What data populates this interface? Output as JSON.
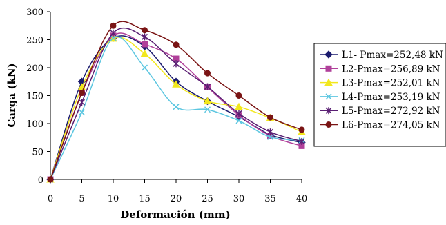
{
  "chart_data": {
    "type": "line",
    "xlabel": "Deformación (mm)",
    "ylabel": "Carga (kN)",
    "xlim": [
      0,
      40
    ],
    "ylim": [
      0,
      300
    ],
    "xticks": [
      "0",
      "5",
      "10",
      "15",
      "20",
      "25",
      "30",
      "35",
      "40"
    ],
    "yticks": [
      "0",
      "50",
      "100",
      "150",
      "200",
      "250",
      "300"
    ],
    "grid": false,
    "legend_position": "right",
    "series": [
      {
        "name": "L1- Pmax=252,48 kN",
        "color": "#1b1b6e",
        "marker": "diamond",
        "x": [
          0,
          5,
          10,
          15,
          20,
          25,
          30,
          35,
          40
        ],
        "y": [
          0,
          175,
          253,
          238,
          175,
          140,
          112,
          80,
          66
        ]
      },
      {
        "name": "L2-Pmax=256,89 kN",
        "color": "#b0409a",
        "marker": "square",
        "x": [
          0,
          5,
          10,
          15,
          20,
          25,
          30,
          35,
          40
        ],
        "y": [
          0,
          155,
          257,
          242,
          216,
          165,
          115,
          78,
          60
        ]
      },
      {
        "name": "L3-Pmax=252,01 kN",
        "color": "#f2e71c",
        "marker": "triangle",
        "x": [
          0,
          5,
          10,
          15,
          20,
          25,
          30,
          35,
          40
        ],
        "y": [
          0,
          165,
          252,
          225,
          170,
          140,
          130,
          110,
          85
        ]
      },
      {
        "name": "L4-Pmax=253,19 kN",
        "color": "#5bc6e0",
        "marker": "x",
        "x": [
          0,
          5,
          10,
          15,
          20,
          25,
          30,
          35,
          40
        ],
        "y": [
          0,
          120,
          253,
          200,
          130,
          125,
          105,
          76,
          70
        ]
      },
      {
        "name": "L5-Pmax=272,92 kN",
        "color": "#5a1f73",
        "marker": "star",
        "x": [
          0,
          5,
          10,
          15,
          20,
          25,
          30,
          35,
          40
        ],
        "y": [
          0,
          138,
          262,
          255,
          207,
          166,
          118,
          85,
          68
        ]
      },
      {
        "name": "L6-Pmax=274,05 kN",
        "color": "#7a1414",
        "marker": "circle",
        "x": [
          0,
          5,
          10,
          15,
          20,
          25,
          30,
          35,
          40
        ],
        "y": [
          0,
          155,
          275,
          267,
          241,
          190,
          150,
          111,
          89
        ]
      }
    ]
  }
}
